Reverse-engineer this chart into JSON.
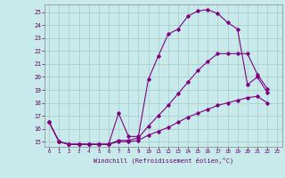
{
  "xlabel": "Windchill (Refroidissement éolien,°C)",
  "bg_color": "#c8eaea",
  "line_color": "#800080",
  "grid_color": "#a8c8c8",
  "x_ticks": [
    0,
    1,
    2,
    3,
    4,
    5,
    6,
    7,
    8,
    9,
    10,
    11,
    12,
    13,
    14,
    15,
    16,
    17,
    18,
    19,
    20,
    21,
    22,
    23
  ],
  "y_ticks": [
    15,
    16,
    17,
    18,
    19,
    20,
    21,
    22,
    23,
    24,
    25
  ],
  "ylim": [
    14.6,
    25.6
  ],
  "xlim": [
    -0.5,
    23.5
  ],
  "series": [
    {
      "x": [
        0,
        1,
        2,
        3,
        4,
        5,
        6,
        7,
        8,
        9,
        10,
        11,
        12,
        13,
        14,
        15,
        16,
        17,
        18,
        19,
        20,
        21,
        22
      ],
      "y": [
        16.5,
        15.0,
        14.8,
        14.8,
        14.8,
        14.8,
        14.8,
        17.2,
        15.4,
        15.4,
        19.8,
        21.6,
        23.3,
        23.7,
        24.7,
        25.1,
        25.2,
        24.9,
        24.2,
        23.7,
        19.4,
        20.0,
        18.8
      ]
    },
    {
      "x": [
        0,
        1,
        2,
        3,
        4,
        5,
        6,
        7,
        8,
        9,
        10,
        11,
        12,
        13,
        14,
        15,
        16,
        17,
        18,
        19,
        20,
        21,
        22
      ],
      "y": [
        16.5,
        15.0,
        14.8,
        14.8,
        14.8,
        14.8,
        14.8,
        15.1,
        15.1,
        15.3,
        16.2,
        17.0,
        17.8,
        18.7,
        19.6,
        20.5,
        21.2,
        21.8,
        21.8,
        21.8,
        21.8,
        20.2,
        19.1
      ]
    },
    {
      "x": [
        0,
        1,
        2,
        3,
        4,
        5,
        6,
        7,
        8,
        9,
        10,
        11,
        12,
        13,
        14,
        15,
        16,
        17,
        18,
        19,
        20,
        21,
        22
      ],
      "y": [
        16.5,
        15.0,
        14.8,
        14.8,
        14.8,
        14.8,
        14.8,
        15.0,
        15.0,
        15.1,
        15.5,
        15.8,
        16.1,
        16.5,
        16.9,
        17.2,
        17.5,
        17.8,
        18.0,
        18.2,
        18.4,
        18.5,
        18.0
      ]
    }
  ]
}
